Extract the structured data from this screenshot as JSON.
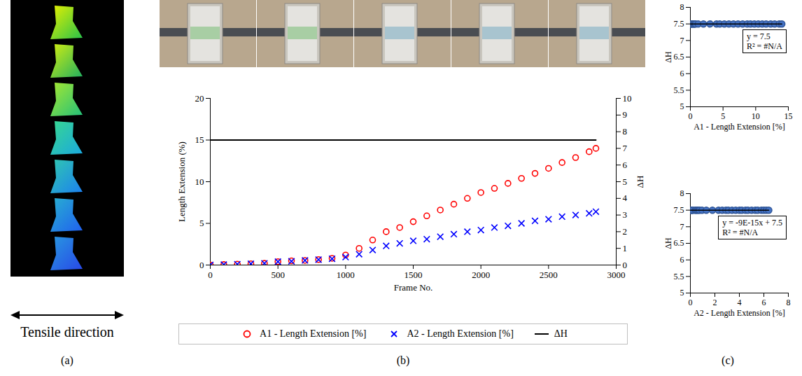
{
  "panel_labels": [
    "(a)",
    "(b)",
    "(c)"
  ],
  "panel_a": {
    "caption": "Tensile direction"
  },
  "chart_data": [
    {
      "type": "scatter",
      "x": [
        0,
        100,
        200,
        300,
        400,
        500,
        600,
        700,
        800,
        900,
        1000,
        1100,
        1200,
        1300,
        1400,
        1500,
        1600,
        1700,
        1800,
        1900,
        2000,
        2100,
        2200,
        2300,
        2400,
        2500,
        2600,
        2700,
        2800,
        2850
      ],
      "x_label": "Frame No.",
      "y_label": "Length Extension (%)",
      "y2_label": "ΔH",
      "xlim": [
        0,
        3000
      ],
      "xticks": [
        0,
        500,
        1000,
        1500,
        2000,
        2500,
        3000
      ],
      "ylim": [
        0,
        20
      ],
      "yticks": [
        0,
        5,
        10,
        15,
        20
      ],
      "y2lim": [
        0,
        10
      ],
      "y2ticks": [
        0,
        1,
        2,
        3,
        4,
        5,
        6,
        7,
        8,
        9,
        10
      ],
      "legend": "bottom",
      "series": [
        {
          "name": "A1 - Length Extension [%]",
          "type": "scatter",
          "color": "#ff0000",
          "marker": "circle",
          "values": [
            0,
            0.05,
            0.1,
            0.15,
            0.2,
            0.4,
            0.5,
            0.55,
            0.65,
            0.8,
            1.2,
            2.0,
            3.0,
            4.0,
            4.5,
            5.2,
            5.9,
            6.6,
            7.3,
            8.0,
            8.7,
            9.2,
            9.8,
            10.4,
            11.0,
            11.6,
            12.3,
            12.9,
            13.6,
            14.0
          ]
        },
        {
          "name": "A2 - Length Extension [%]",
          "type": "scatter",
          "color": "#0000ff",
          "marker": "x",
          "values": [
            0,
            0.05,
            0.1,
            0.15,
            0.2,
            0.4,
            0.45,
            0.55,
            0.65,
            0.75,
            0.95,
            1.3,
            1.8,
            2.3,
            2.6,
            2.9,
            3.1,
            3.4,
            3.7,
            4.0,
            4.2,
            4.5,
            4.7,
            5.0,
            5.3,
            5.5,
            5.8,
            6.0,
            6.2,
            6.4
          ]
        },
        {
          "name": "ΔH",
          "type": "line",
          "axis": "y2",
          "color": "#000000",
          "values": [
            7.5,
            7.5,
            7.5,
            7.5,
            7.5,
            7.5,
            7.5,
            7.5,
            7.5,
            7.5,
            7.5,
            7.5,
            7.5,
            7.5,
            7.5,
            7.5,
            7.5,
            7.5,
            7.5,
            7.5,
            7.5,
            7.5,
            7.5,
            7.5,
            7.5,
            7.5,
            7.5,
            7.5,
            7.5,
            7.5
          ]
        }
      ]
    },
    {
      "type": "scatter",
      "x": [
        0,
        0.05,
        0.1,
        0.15,
        0.2,
        0.4,
        0.5,
        0.55,
        0.65,
        0.8,
        1.2,
        2.0,
        3.0,
        4.0,
        4.5,
        5.2,
        5.9,
        6.6,
        7.3,
        8.0,
        8.7,
        9.2,
        9.8,
        10.4,
        11.0,
        11.6,
        12.3,
        12.9,
        13.6,
        14.0
      ],
      "values": [
        7.5,
        7.5,
        7.5,
        7.5,
        7.5,
        7.5,
        7.5,
        7.5,
        7.5,
        7.5,
        7.5,
        7.5,
        7.5,
        7.5,
        7.5,
        7.5,
        7.5,
        7.5,
        7.5,
        7.5,
        7.5,
        7.5,
        7.5,
        7.5,
        7.5,
        7.5,
        7.5,
        7.5,
        7.5,
        7.5
      ],
      "color": "#4472c4",
      "marker": "circle",
      "x_label": "A1 - Length Extension [%]",
      "y_label": "ΔH",
      "xlim": [
        0,
        15
      ],
      "xticks": [
        0,
        5,
        10,
        15
      ],
      "ylim": [
        5,
        8
      ],
      "yticks": [
        5,
        5.5,
        6,
        6.5,
        7,
        7.5,
        8
      ],
      "annotation": [
        "y = 7.5",
        "R² = #N/A"
      ]
    },
    {
      "type": "scatter",
      "x": [
        0,
        0.05,
        0.1,
        0.15,
        0.2,
        0.4,
        0.45,
        0.55,
        0.65,
        0.75,
        0.95,
        1.3,
        1.8,
        2.3,
        2.6,
        2.9,
        3.1,
        3.4,
        3.7,
        4.0,
        4.2,
        4.5,
        4.7,
        5.0,
        5.3,
        5.5,
        5.8,
        6.0,
        6.2,
        6.4
      ],
      "values": [
        7.5,
        7.5,
        7.5,
        7.5,
        7.5,
        7.5,
        7.5,
        7.5,
        7.5,
        7.5,
        7.5,
        7.5,
        7.5,
        7.5,
        7.5,
        7.5,
        7.5,
        7.5,
        7.5,
        7.5,
        7.5,
        7.5,
        7.5,
        7.5,
        7.5,
        7.5,
        7.5,
        7.5,
        7.5,
        7.5
      ],
      "color": "#4472c4",
      "marker": "circle",
      "x_label": "A2 - Length Extension [%]",
      "y_label": "ΔH",
      "xlim": [
        0,
        8
      ],
      "xticks": [
        0,
        2,
        4,
        6,
        8
      ],
      "ylim": [
        5,
        8
      ],
      "yticks": [
        5,
        5.5,
        6,
        6.5,
        7,
        7.5,
        8
      ],
      "annotation": [
        "y = -9E-15x + 7.5",
        "R² = #N/A"
      ]
    }
  ]
}
